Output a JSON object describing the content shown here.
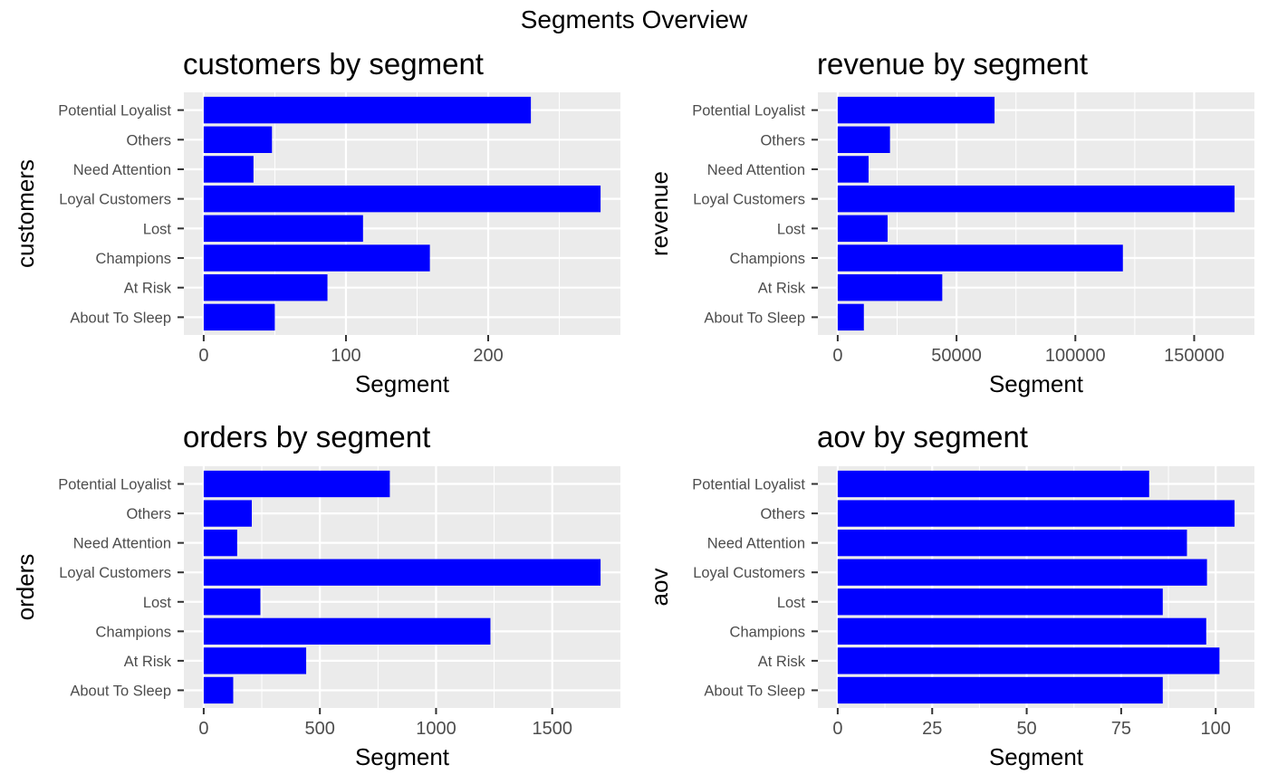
{
  "title": "Segments Overview",
  "colors": {
    "bar": "#0000ff",
    "panel_bg": "#ebebeb",
    "grid": "#ffffff",
    "tick_text": "#4d4d4d"
  },
  "chart_data": [
    {
      "type": "bar",
      "orientation": "horizontal",
      "title": "customers by segment",
      "xlabel": "Segment",
      "ylabel": "customers",
      "categories": [
        "About To Sleep",
        "At Risk",
        "Champions",
        "Lost",
        "Loyal Customers",
        "Need Attention",
        "Others",
        "Potential Loyalist"
      ],
      "values": [
        50,
        87,
        159,
        112,
        279,
        35,
        48,
        230
      ],
      "xlim": [
        -13.95,
        292.95
      ],
      "xticks": [
        0,
        100,
        200
      ],
      "xminor": [
        50,
        150,
        250
      ],
      "grid": true
    },
    {
      "type": "bar",
      "orientation": "horizontal",
      "title": "revenue by segment",
      "xlabel": "Segment",
      "ylabel": "revenue",
      "categories": [
        "About To Sleep",
        "At Risk",
        "Champions",
        "Lost",
        "Loyal Customers",
        "Need Attention",
        "Others",
        "Potential Loyalist"
      ],
      "values": [
        11000,
        44000,
        120000,
        21000,
        167000,
        13000,
        22000,
        66000
      ],
      "xlim": [
        -8350,
        175350
      ],
      "xticks": [
        0,
        50000,
        100000,
        150000
      ],
      "xminor": [
        25000,
        75000,
        125000
      ],
      "grid": true
    },
    {
      "type": "bar",
      "orientation": "horizontal",
      "title": "orders by segment",
      "xlabel": "Segment",
      "ylabel": "orders",
      "categories": [
        "About To Sleep",
        "At Risk",
        "Champions",
        "Lost",
        "Loyal Customers",
        "Need Attention",
        "Others",
        "Potential Loyalist"
      ],
      "values": [
        127,
        441,
        1234,
        244,
        1708,
        144,
        207,
        801
      ],
      "xlim": [
        -85.4,
        1793.4
      ],
      "xticks": [
        0,
        500,
        1000,
        1500
      ],
      "xminor": [
        250,
        750,
        1250
      ],
      "grid": true
    },
    {
      "type": "bar",
      "orientation": "horizontal",
      "title": "aov by segment",
      "xlabel": "Segment",
      "ylabel": "aov",
      "categories": [
        "About To Sleep",
        "At Risk",
        "Champions",
        "Lost",
        "Loyal Customers",
        "Need Attention",
        "Others",
        "Potential Loyalist"
      ],
      "values": [
        86,
        101,
        97.5,
        86,
        97.7,
        92.4,
        105,
        82.4
      ],
      "xlim": [
        -5.25,
        110.25
      ],
      "xticks": [
        0,
        25,
        50,
        75,
        100
      ],
      "xminor": [
        12.5,
        37.5,
        62.5,
        87.5
      ],
      "grid": true
    }
  ]
}
